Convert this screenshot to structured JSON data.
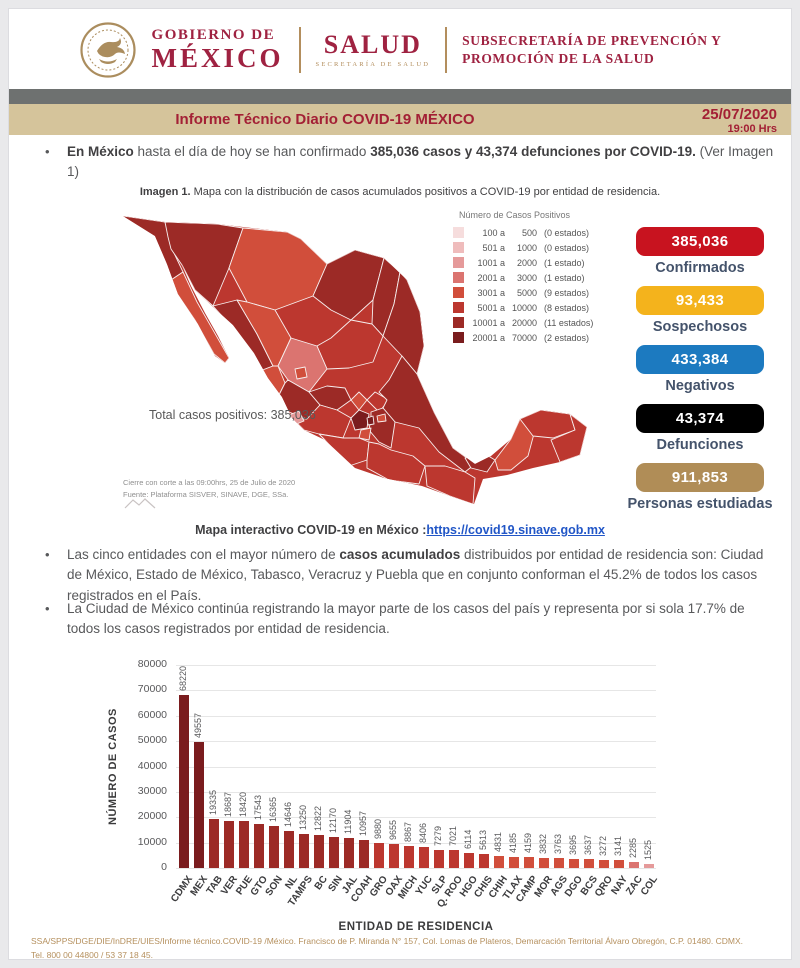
{
  "header": {
    "gobierno_line1": "GOBIERNO DE",
    "gobierno_line2": "MÉXICO",
    "salud": "SALUD",
    "salud_sub": "SECRETARÍA DE SALUD",
    "subsecretaria_line1": "SUBSECRETARÍA DE PREVENCIÓN Y",
    "subsecretaria_line2": "PROMOCIÓN DE LA SALUD"
  },
  "banner": {
    "title": "Informe Técnico Diario COVID-19 MÉXICO",
    "date": "25/07/2020",
    "time": "19:00 Hrs"
  },
  "bullets": {
    "b1": [
      {
        "t": "En México ",
        "b": 1
      },
      {
        "t": "hasta el día de hoy se han confirmado ",
        "b": 0
      },
      {
        "t": "385,036 casos y 43,374 defunciones por COVID-19.",
        "b": 1
      },
      {
        "t": " (Ver Imagen 1)",
        "b": 0
      }
    ],
    "b2": [
      {
        "t": "Las cinco entidades con el mayor número de ",
        "b": 0
      },
      {
        "t": "casos acumulados",
        "b": 1
      },
      {
        "t": " distribuidos por entidad de residencia son: Ciudad de México, Estado de México, Tabasco, Veracruz y Puebla que en conjunto conforman el 45.2% de todos los casos registrados en el País.",
        "b": 0
      }
    ],
    "b3": [
      {
        "t": "La Ciudad de México continúa registrando la mayor parte de los casos del país y representa por si sola 17.7% de todos los casos registrados por entidad de residencia.",
        "b": 0
      }
    ]
  },
  "imagen1": [
    {
      "t": "Imagen 1.",
      "b": 1
    },
    {
      "t": " Mapa con la distribución de casos acumulados positivos a COVID-19 por entidad de residencia.",
      "b": 0
    }
  ],
  "map": {
    "palette": {
      "c1": "#f6dddd",
      "c2": "#efbcbc",
      "c3": "#e59a9a",
      "c4": "#db7470",
      "c5": "#d14e3b",
      "c6": "#bc372f",
      "c7": "#9c2a26",
      "c8": "#7a1c1e"
    },
    "legend_title": "Número de Casos Positivos",
    "legend": [
      {
        "a": "100 a",
        "b": "500",
        "n": "(0 estados)",
        "c": "c1"
      },
      {
        "a": "501 a",
        "b": "1000",
        "n": "(0 estados)",
        "c": "c2"
      },
      {
        "a": "1001 a",
        "b": "2000",
        "n": "(1 estado)",
        "c": "c3"
      },
      {
        "a": "2001 a",
        "b": "3000",
        "n": "(1 estado)",
        "c": "c4"
      },
      {
        "a": "3001 a",
        "b": "5000",
        "n": "(9 estados)",
        "c": "c5"
      },
      {
        "a": "5001 a",
        "b": "10000",
        "n": "(8 estados)",
        "c": "c6"
      },
      {
        "a": "10001 a",
        "b": "20000",
        "n": "(11 estados)",
        "c": "c7"
      },
      {
        "a": "20001 a",
        "b": "70000",
        "n": "(2 estados)",
        "c": "c8"
      }
    ],
    "total": "Total casos positivos: 385,036",
    "cierre": "Cierre con corte a las 09:00hrs, 25 de Julio de 2020",
    "fuente": "Fuente: Plataforma SISVER, SINAVE, DGE, SSa."
  },
  "stats": [
    {
      "value": "385,036",
      "label": "Confirmados",
      "color": "#c8131f"
    },
    {
      "value": "93,433",
      "label": "Sospechosos",
      "color": "#f4b31c"
    },
    {
      "value": "433,384",
      "label": "Negativos",
      "color": "#1c7ac0"
    },
    {
      "value": "43,374",
      "label": "Defunciones",
      "color": "#000000"
    },
    {
      "value": "911,853",
      "label": "Personas estudiadas",
      "color": "#b08d57"
    }
  ],
  "map_link": {
    "label": "Mapa interactivo COVID-19 en México :",
    "url": "https://covid19.sinave.gob.mx"
  },
  "chart_data": {
    "type": "bar",
    "title": "",
    "xlabel": "ENTIDAD DE RESIDENCIA",
    "ylabel": "NÚMERO DE CASOS",
    "ylim": [
      0,
      80000
    ],
    "ytick_step": 10000,
    "grid": true,
    "categories": [
      "CDMX",
      "MEX",
      "TAB",
      "VER",
      "PUE",
      "GTO",
      "SON",
      "NL",
      "TAMPS",
      "BC",
      "SIN",
      "JAL",
      "COAH",
      "GRO",
      "OAX",
      "MICH",
      "YUC",
      "SLP",
      "Q. ROO",
      "HGO",
      "CHIS",
      "CHIH",
      "TLAX",
      "CAMP",
      "MOR",
      "AGS",
      "DGO",
      "BCS",
      "QRO",
      "NAY",
      "ZAC",
      "COL"
    ],
    "values": [
      68220,
      49557,
      19335,
      18687,
      18420,
      17543,
      16365,
      14646,
      13250,
      12822,
      12170,
      11904,
      10957,
      9880,
      9655,
      8867,
      8406,
      7279,
      7021,
      6114,
      5613,
      4831,
      4185,
      4159,
      3832,
      3763,
      3695,
      3637,
      3272,
      3141,
      2285,
      1525
    ]
  },
  "footer": {
    "text": "SSA/SPPS/DGE/DIE/InDRE/UIES/Informe técnico.COVID-19 /México. Francisco de P. Miranda N° 157, Col. Lomas de Plateros, Demarcación Territorial Álvaro Obregón, C.P. 01480. CDMX. Tel. 800 00 44800 / 53 37 18 45."
  }
}
